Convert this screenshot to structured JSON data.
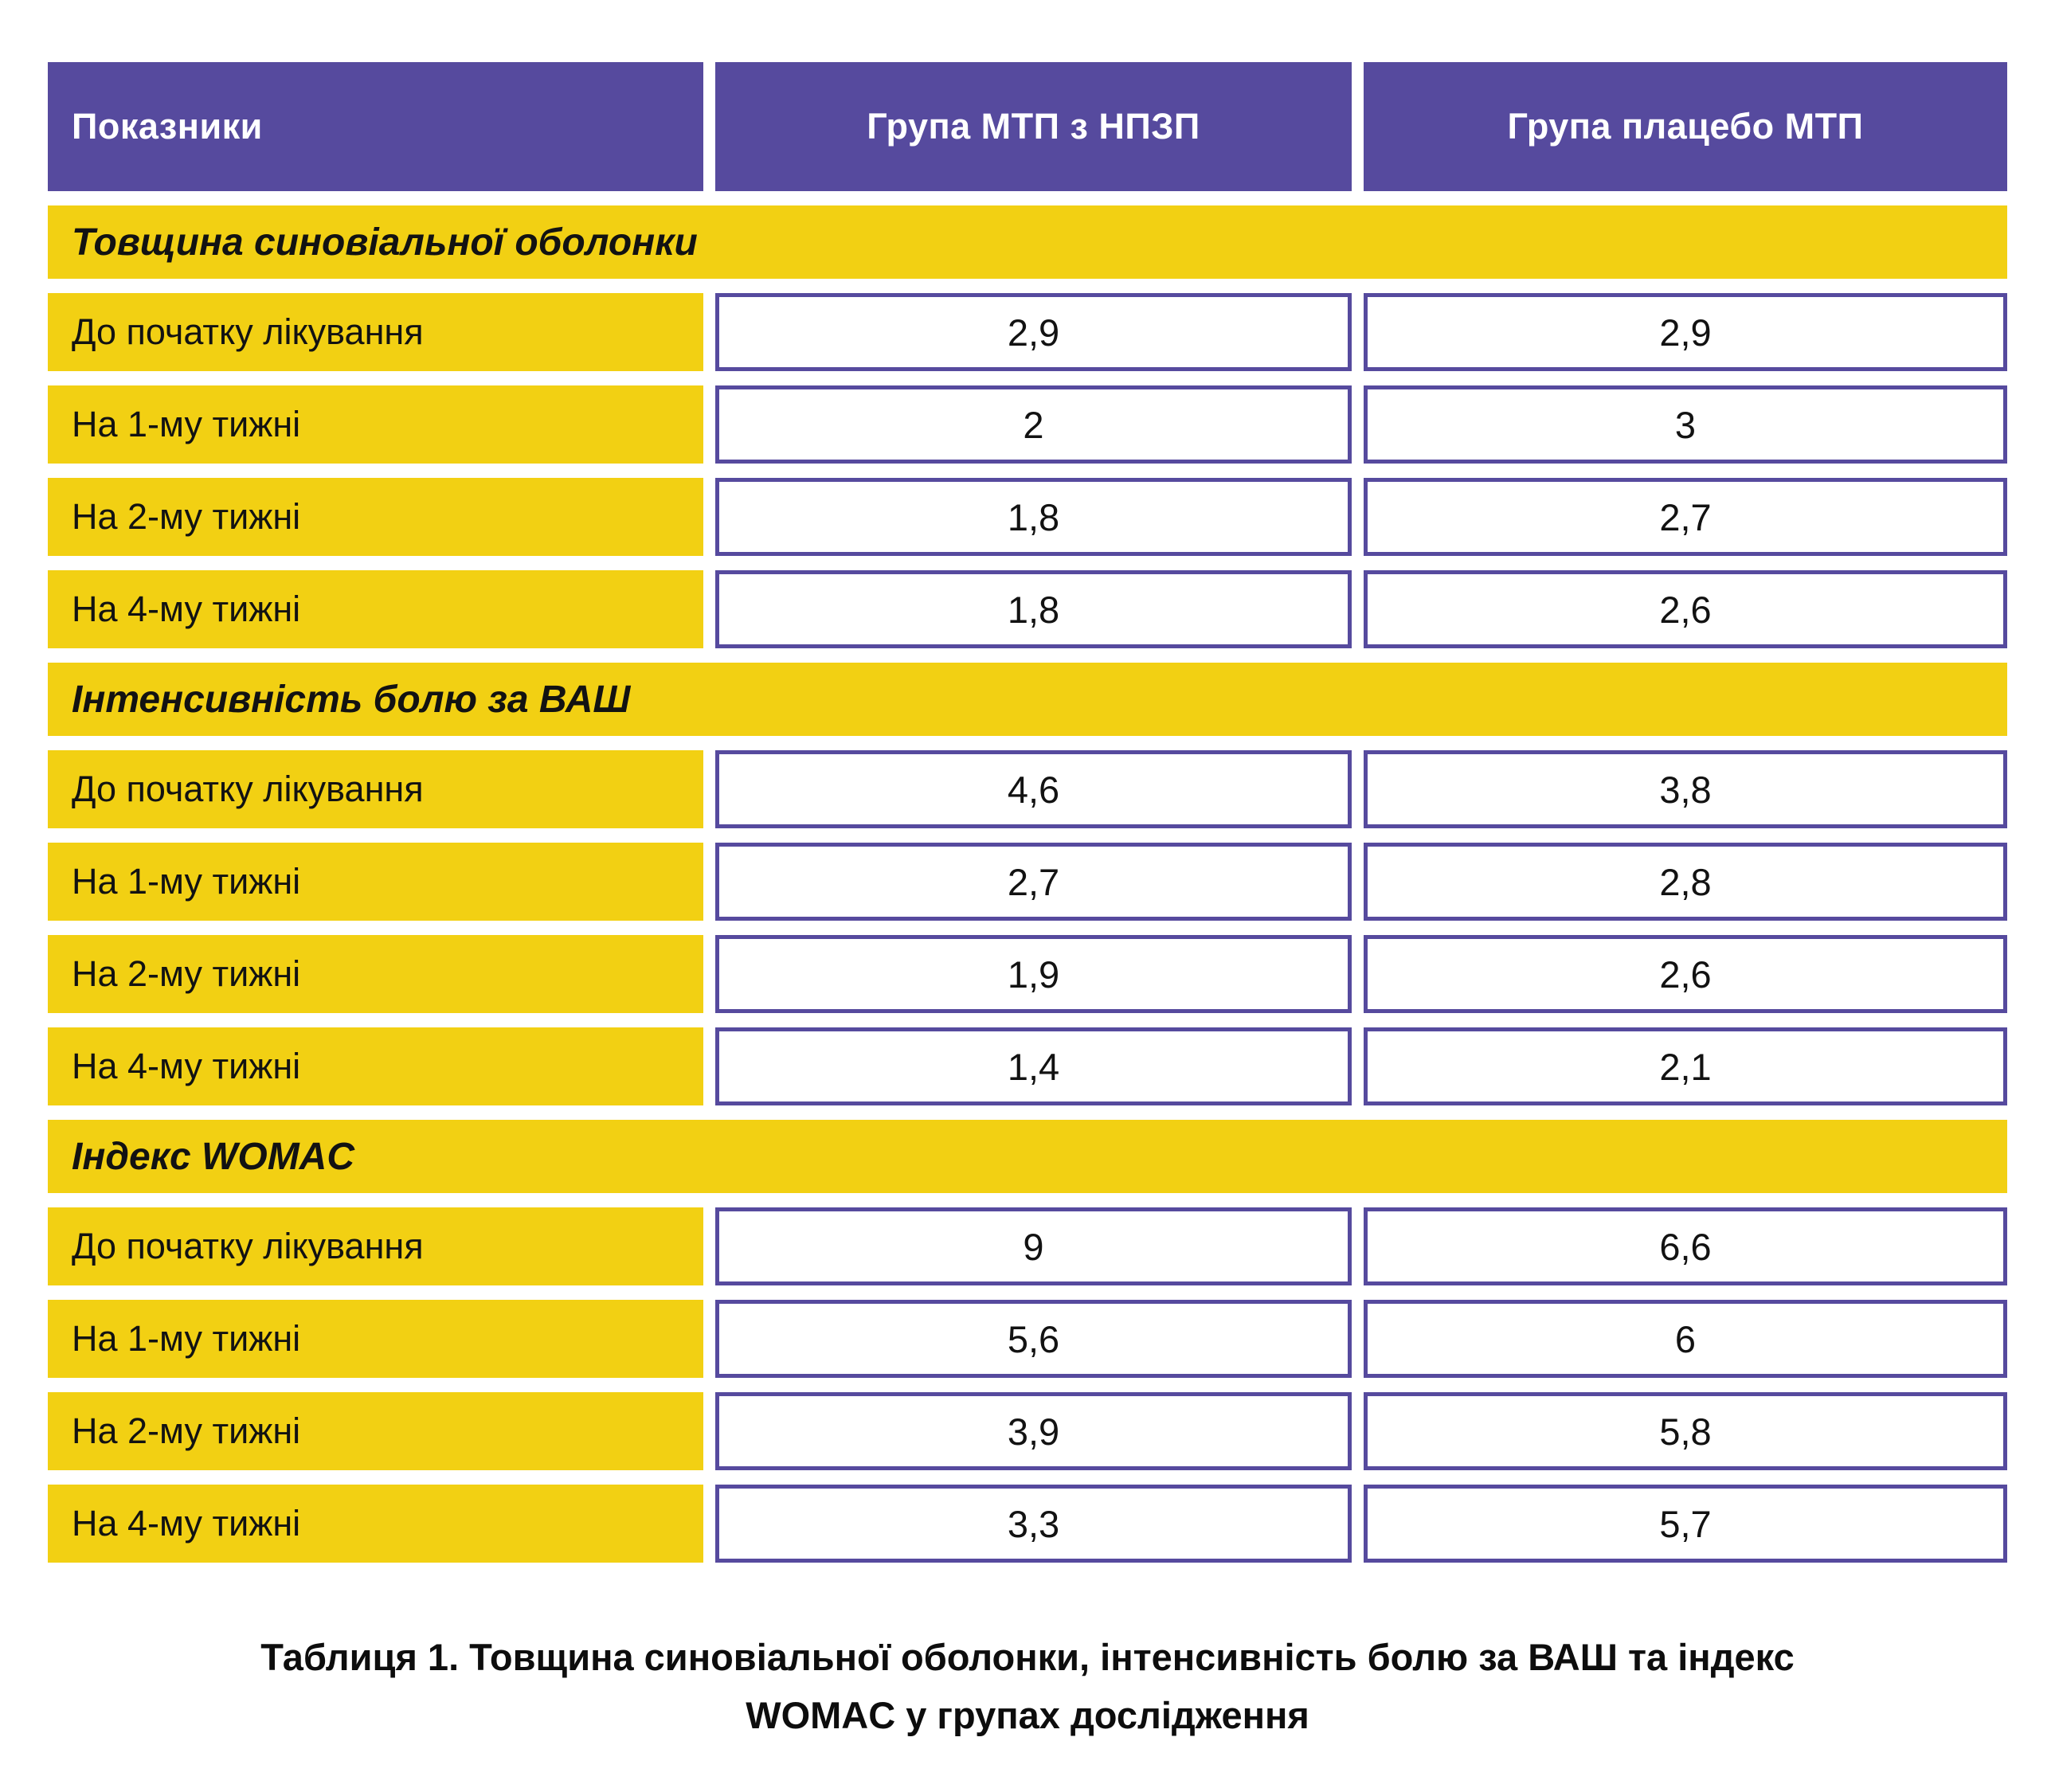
{
  "colors": {
    "header_purple": "#564A9E",
    "accent_yellow": "#F2D013",
    "value_border_purple": "#564A9E",
    "text_black": "#121212",
    "background": "#FFFFFF"
  },
  "header": {
    "col1": "Показники",
    "col2": "Група МТП з НПЗП",
    "col3": "Група плацебо МТП"
  },
  "sections": [
    {
      "title": "Товщина синовіальної оболонки",
      "rows": [
        {
          "label": "До початку лікування",
          "values": [
            "2,9",
            "2,9"
          ]
        },
        {
          "label": "На 1-му тижні",
          "values": [
            "2",
            "3"
          ]
        },
        {
          "label": "На 2-му тижні",
          "values": [
            "1,8",
            "2,7"
          ]
        },
        {
          "label": "На 4-му тижні",
          "values": [
            "1,8",
            "2,6"
          ]
        }
      ]
    },
    {
      "title": "Інтенсивність болю за ВАШ",
      "rows": [
        {
          "label": "До початку лікування",
          "values": [
            "4,6",
            "3,8"
          ]
        },
        {
          "label": "На 1-му тижні",
          "values": [
            "2,7",
            "2,8"
          ]
        },
        {
          "label": "На 2-му тижні",
          "values": [
            "1,9",
            "2,6"
          ]
        },
        {
          "label": "На 4-му тижні",
          "values": [
            "1,4",
            "2,1"
          ]
        }
      ]
    },
    {
      "title": "Індекс WOMAC",
      "rows": [
        {
          "label": "До початку лікування",
          "values": [
            "9",
            "6,6"
          ]
        },
        {
          "label": "На 1-му тижні",
          "values": [
            "5,6",
            "6"
          ]
        },
        {
          "label": "На 2-му тижні",
          "values": [
            "3,9",
            "5,8"
          ]
        },
        {
          "label": "На 4-му тижні",
          "values": [
            "3,3",
            "5,7"
          ]
        }
      ]
    }
  ],
  "caption": {
    "line1": "Таблиця 1. Товщина синовіальної оболонки, інтенсивність болю за ВАШ та індекс",
    "line2": "WOMAC у групах дослідження"
  },
  "chart_data": {
    "type": "table",
    "title": "Таблиця 1. Товщина синовіальної оболонки, інтенсивність болю за ВАШ та індекс WOMAC у групах дослідження",
    "columns": [
      "Показники",
      "Група МТП з НПЗП",
      "Група плацебо МТП"
    ],
    "sections": [
      {
        "section": "Товщина синовіальної оболонки",
        "rows": [
          {
            "indicator": "До початку лікування",
            "mtp_npzp": 2.9,
            "placebo_mtp": 2.9
          },
          {
            "indicator": "На 1-му тижні",
            "mtp_npzp": 2,
            "placebo_mtp": 3
          },
          {
            "indicator": "На 2-му тижні",
            "mtp_npzp": 1.8,
            "placebo_mtp": 2.7
          },
          {
            "indicator": "На 4-му тижні",
            "mtp_npzp": 1.8,
            "placebo_mtp": 2.6
          }
        ]
      },
      {
        "section": "Інтенсивність болю за ВАШ",
        "rows": [
          {
            "indicator": "До початку лікування",
            "mtp_npzp": 4.6,
            "placebo_mtp": 3.8
          },
          {
            "indicator": "На 1-му тижні",
            "mtp_npzp": 2.7,
            "placebo_mtp": 2.8
          },
          {
            "indicator": "На 2-му тижні",
            "mtp_npzp": 1.9,
            "placebo_mtp": 2.6
          },
          {
            "indicator": "На 4-му тижні",
            "mtp_npzp": 1.4,
            "placebo_mtp": 2.1
          }
        ]
      },
      {
        "section": "Індекс WOMAC",
        "rows": [
          {
            "indicator": "До початку лікування",
            "mtp_npzp": 9,
            "placebo_mtp": 6.6
          },
          {
            "indicator": "На 1-му тижні",
            "mtp_npzp": 5.6,
            "placebo_mtp": 6
          },
          {
            "indicator": "На 2-му тижні",
            "mtp_npzp": 3.9,
            "placebo_mtp": 5.8
          },
          {
            "indicator": "На 4-му тижні",
            "mtp_npzp": 3.3,
            "placebo_mtp": 5.7
          }
        ]
      }
    ]
  }
}
